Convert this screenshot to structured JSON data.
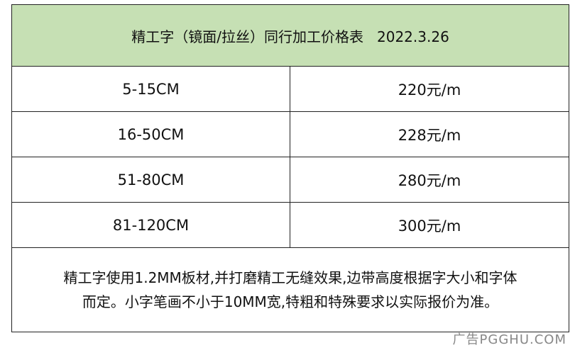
{
  "table": {
    "title": "精工字（镜面/拉丝）同行加工价格表   2022.3.26",
    "rows": [
      [
        "5-15CM",
        "220元/m"
      ],
      [
        "16-50CM",
        "228元/m"
      ],
      [
        "51-80CM",
        "280元/m"
      ],
      [
        "81-120CM",
        "300元/m"
      ]
    ],
    "note": [
      "精工字使用1.2MM板材,并打磨精工无缝效果,边带高度根据字大小和字体",
      "而定。小字笔画不小于10MM宽,特粗和特殊要求以实际报价为准。"
    ]
  },
  "watermark": "广告PGGHU.COM"
}
